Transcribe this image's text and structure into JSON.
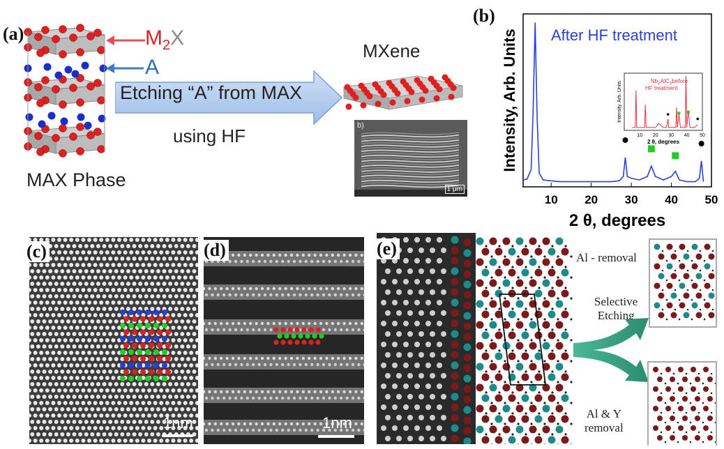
{
  "panels": {
    "a": {
      "label": "(a)",
      "m2x_text": "M",
      "m2x_sub": "2",
      "m2x_x": "X",
      "a_text": "A",
      "arrow_line1": "Etching “A” from MAX",
      "arrow_line2": "using HF",
      "mxene_title": "MXene",
      "max_title": "MAX Phase",
      "sem_scale": "1 μm",
      "sem_tag": "b)",
      "colors": {
        "m_atom": "#e02020",
        "a_atom": "#1a2fc8",
        "arrow_fill": "#a9c8ef",
        "m2x_arrow": "#e05050",
        "a_arrow": "#3a7dc8"
      }
    },
    "b": {
      "label": "(b)",
      "title": "After HF treatment",
      "inset_title_1": "Nb",
      "inset_title_sub1": "2",
      "inset_title_2": "AlC",
      "inset_title_sub2": "3",
      "inset_title_3": " before",
      "inset_title_4": "HF treatment",
      "inset_ylabel": "Intensity, Arb. Units",
      "inset_xlabel": "2 θ, degrees"
    },
    "c": {
      "label": "(c)",
      "scale": "1nm"
    },
    "d": {
      "label": "(d)",
      "scale": "1nm"
    },
    "e": {
      "label": "(e)",
      "al_removal": "Al - removal",
      "selective_1": "Selective",
      "selective_2": "Etching",
      "aly_1": "Al & Y",
      "aly_2": "removal",
      "colors": {
        "teal": "#1f8a8a",
        "maroon": "#7a1a1a",
        "arrow": "#2a9a7a"
      }
    }
  },
  "chart_data": {
    "type": "line",
    "title": "After HF treatment",
    "xlabel": "2 θ, degrees",
    "ylabel": "Intensity, Arb. Units",
    "xlim": [
      3,
      50
    ],
    "ylim": [
      0,
      100
    ],
    "xticks": [
      10,
      20,
      30,
      40,
      50
    ],
    "series": [
      {
        "x": [
          3,
          4,
          5,
          5.5,
          6,
          6.5,
          7,
          8,
          10,
          12,
          15,
          18,
          20,
          22,
          25,
          27,
          28,
          28.5,
          29,
          30,
          32,
          34,
          35,
          36,
          38,
          40,
          41,
          42,
          44,
          46,
          47,
          47.5,
          48
        ],
        "y": [
          4,
          4.5,
          10,
          45,
          95,
          40,
          8,
          4,
          3.5,
          3,
          3,
          3,
          3,
          3,
          3,
          3.5,
          6,
          17,
          6,
          5,
          4,
          6,
          12,
          6,
          4,
          6,
          9,
          4,
          3,
          3,
          5,
          15,
          3
        ]
      }
    ],
    "markers": [
      {
        "shape": "circle",
        "x": 28.5,
        "y": 27
      },
      {
        "shape": "square",
        "x": 35,
        "y": 22
      },
      {
        "shape": "square",
        "x": 41,
        "y": 18
      },
      {
        "shape": "circle",
        "x": 47.5,
        "y": 25
      }
    ],
    "inset": {
      "type": "line",
      "title": "Nb2AlC3 before HF treatment",
      "xlabel": "2 θ, degrees",
      "ylabel": "Intensity, Arb. Units",
      "xlim": [
        0,
        50
      ],
      "xticks": [
        10,
        20,
        30,
        40,
        50
      ],
      "series": [
        {
          "x": [
            5,
            7,
            7.5,
            8,
            10,
            13,
            13.5,
            14,
            18,
            20,
            22,
            25,
            27,
            28,
            28.5,
            29,
            32,
            33,
            33.5,
            34,
            35,
            36,
            38,
            39,
            39.5,
            40,
            41,
            42,
            45,
            47
          ],
          "y": [
            5,
            5,
            70,
            5,
            5,
            5,
            45,
            5,
            5,
            5,
            12,
            5,
            5,
            20,
            5,
            5,
            5,
            5,
            40,
            5,
            28,
            5,
            5,
            5,
            95,
            5,
            35,
            5,
            5,
            10
          ]
        }
      ]
    },
    "colors": {
      "line": "#2a3fd8",
      "title": "#2a3fd8",
      "circle": "#000000",
      "square": "#22cc22",
      "inset_line": "#e03040"
    }
  }
}
